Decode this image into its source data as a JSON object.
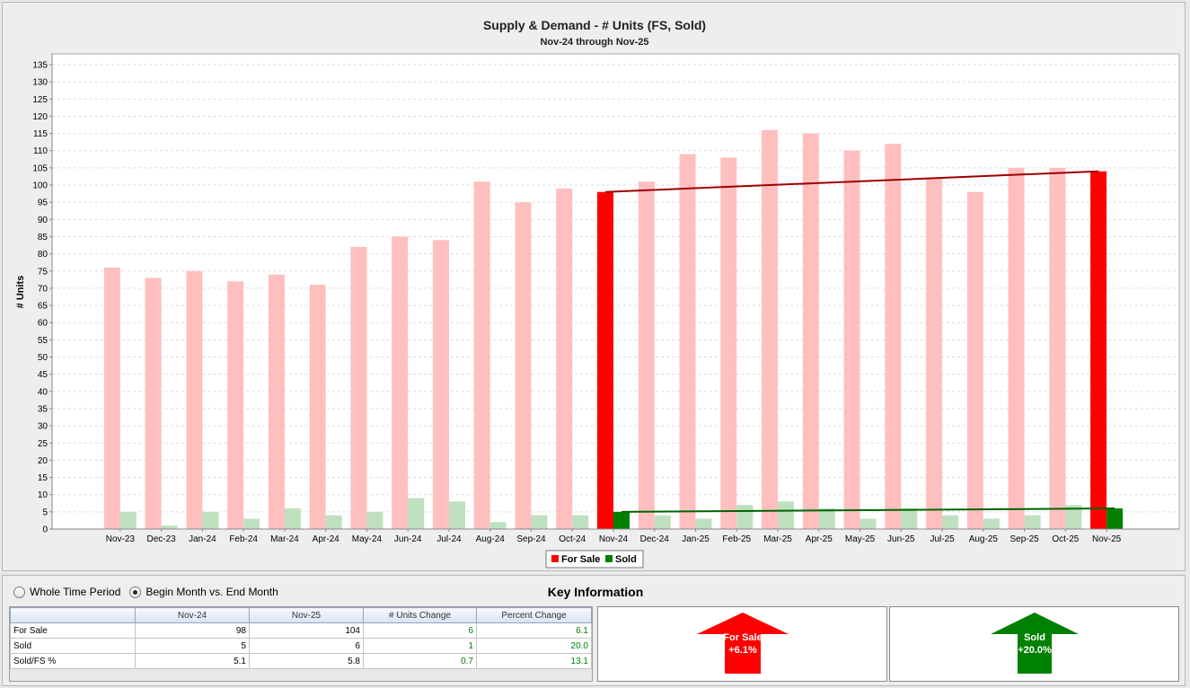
{
  "chart_data": {
    "type": "bar",
    "title": "Supply & Demand - # Units (FS, Sold)",
    "subtitle": "Nov-24 through Nov-25",
    "ylabel": "# Units",
    "xlabel": "",
    "ylim": [
      0,
      135
    ],
    "yticks": [
      0,
      5,
      10,
      15,
      20,
      25,
      30,
      35,
      40,
      45,
      50,
      55,
      60,
      65,
      70,
      75,
      80,
      85,
      90,
      95,
      100,
      105,
      110,
      115,
      120,
      125,
      130,
      135
    ],
    "grid": true,
    "legend_position": "bottom",
    "categories": [
      "Nov-23",
      "Dec-23",
      "Jan-24",
      "Feb-24",
      "Mar-24",
      "Apr-24",
      "May-24",
      "Jun-24",
      "Jul-24",
      "Aug-24",
      "Sep-24",
      "Oct-24",
      "Nov-24",
      "Dec-24",
      "Jan-25",
      "Feb-25",
      "Mar-25",
      "Apr-25",
      "May-25",
      "Jun-25",
      "Jul-25",
      "Aug-25",
      "Sep-25",
      "Oct-25",
      "Nov-25"
    ],
    "series": [
      {
        "name": "For Sale",
        "color": "#ff0000",
        "faded_color": "#ffbfbf",
        "values": [
          76,
          73,
          75,
          72,
          74,
          71,
          82,
          85,
          84,
          101,
          95,
          99,
          98,
          101,
          109,
          108,
          116,
          115,
          110,
          112,
          102,
          98,
          105,
          105,
          104
        ]
      },
      {
        "name": "Sold",
        "color": "#008000",
        "faded_color": "#bfe0bf",
        "values": [
          5,
          1,
          5,
          3,
          6,
          4,
          5,
          9,
          8,
          2,
          4,
          4,
          5,
          4,
          3,
          7,
          8,
          6,
          3,
          6,
          4,
          3,
          4,
          7,
          6
        ]
      }
    ],
    "highlight_categories": [
      "Nov-24",
      "Nov-25"
    ],
    "trend_lines": [
      {
        "series": "For Sale",
        "from": "Nov-24",
        "to": "Nov-25",
        "start": 98,
        "end": 104,
        "color": "#a00000"
      },
      {
        "series": "Sold",
        "from": "Nov-24",
        "to": "Nov-25",
        "start": 5,
        "end": 6,
        "color": "#006400"
      }
    ]
  },
  "options": {
    "whole_time_period": "Whole Time Period",
    "begin_vs_end": "Begin Month vs. End Month",
    "selected": "begin_vs_end"
  },
  "key_info": {
    "title": "Key Information",
    "headers": [
      "",
      "Nov-24",
      "Nov-25",
      "# Units Change",
      "Percent Change"
    ],
    "rows": [
      {
        "label": "For Sale",
        "begin": "98",
        "end": "104",
        "change": "6",
        "pct": "6.1"
      },
      {
        "label": "Sold",
        "begin": "5",
        "end": "6",
        "change": "1",
        "pct": "20.0"
      },
      {
        "label": "Sold/FS %",
        "begin": "5.1",
        "end": "5.8",
        "change": "0.7",
        "pct": "13.1"
      }
    ],
    "for_sale_arrow": {
      "label": "For Sale",
      "value": "+6.1%",
      "color": "#ff0000",
      "direction": "up"
    },
    "sold_arrow": {
      "label": "Sold",
      "value": "+20.0%",
      "color": "#008000",
      "direction": "up"
    }
  }
}
